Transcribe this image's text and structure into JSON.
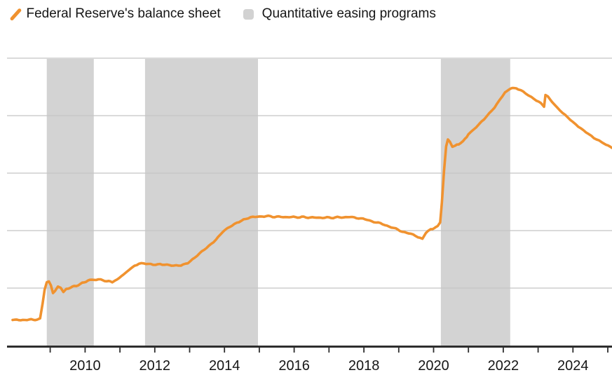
{
  "legend": {
    "series_label": "Federal Reserve's balance sheet",
    "band_label": "Quantitative easing programs"
  },
  "colors": {
    "line": "#F0922F",
    "band": "#D3D3D3",
    "legend_square": "#D2D2D2",
    "gridline": "#C4C4C4",
    "axis": "#2E2E2E",
    "text": "#161616",
    "background": "#FFFFFF"
  },
  "chart_data": {
    "type": "line",
    "title": "",
    "xlabel": "",
    "ylabel": "",
    "grid": "horizontal",
    "legend_position": "top-left",
    "x_axis": {
      "min": 2007.76,
      "max": 2025.12,
      "tick_years": [
        2009,
        2010,
        2011,
        2012,
        2013,
        2014,
        2015,
        2016,
        2017,
        2018,
        2019,
        2020,
        2021,
        2022,
        2023,
        2024,
        2025
      ],
      "label_years": [
        2010,
        2012,
        2014,
        2016,
        2018,
        2020,
        2022,
        2024
      ]
    },
    "y_axis": {
      "min": 0,
      "max": 10,
      "gridline_step": 2,
      "tick_labels_visible": false,
      "note": "no axis value labels shown; values estimated in trillions of US dollars from gridline spacing"
    },
    "bands": [
      {
        "start": 2008.9,
        "end": 2010.25
      },
      {
        "start": 2011.72,
        "end": 2014.96
      },
      {
        "start": 2020.21,
        "end": 2022.2
      }
    ],
    "series": [
      {
        "name": "Federal Reserve's balance sheet",
        "color": "#F0922F",
        "points": [
          [
            2007.92,
            0.89
          ],
          [
            2008.15,
            0.89
          ],
          [
            2008.4,
            0.9
          ],
          [
            2008.62,
            0.9
          ],
          [
            2008.71,
            0.94
          ],
          [
            2008.78,
            1.45
          ],
          [
            2008.84,
            1.95
          ],
          [
            2008.9,
            2.2
          ],
          [
            2008.96,
            2.22
          ],
          [
            2009.02,
            2.1
          ],
          [
            2009.08,
            1.83
          ],
          [
            2009.14,
            1.9
          ],
          [
            2009.22,
            2.05
          ],
          [
            2009.3,
            2.03
          ],
          [
            2009.38,
            1.87
          ],
          [
            2009.46,
            1.97
          ],
          [
            2009.58,
            2.02
          ],
          [
            2009.75,
            2.08
          ],
          [
            2009.92,
            2.17
          ],
          [
            2010.08,
            2.26
          ],
          [
            2010.25,
            2.3
          ],
          [
            2010.45,
            2.29
          ],
          [
            2010.62,
            2.24
          ],
          [
            2010.78,
            2.22
          ],
          [
            2010.92,
            2.3
          ],
          [
            2011.08,
            2.45
          ],
          [
            2011.25,
            2.62
          ],
          [
            2011.42,
            2.78
          ],
          [
            2011.55,
            2.85
          ],
          [
            2011.75,
            2.84
          ],
          [
            2011.95,
            2.82
          ],
          [
            2012.15,
            2.84
          ],
          [
            2012.35,
            2.8
          ],
          [
            2012.55,
            2.77
          ],
          [
            2012.75,
            2.8
          ],
          [
            2012.95,
            2.88
          ],
          [
            2013.15,
            3.05
          ],
          [
            2013.35,
            3.27
          ],
          [
            2013.55,
            3.47
          ],
          [
            2013.75,
            3.68
          ],
          [
            2013.95,
            3.95
          ],
          [
            2014.15,
            4.13
          ],
          [
            2014.35,
            4.28
          ],
          [
            2014.55,
            4.38
          ],
          [
            2014.75,
            4.45
          ],
          [
            2014.95,
            4.49
          ],
          [
            2015.2,
            4.5
          ],
          [
            2015.5,
            4.48
          ],
          [
            2015.8,
            4.47
          ],
          [
            2016.1,
            4.47
          ],
          [
            2016.4,
            4.46
          ],
          [
            2016.7,
            4.45
          ],
          [
            2017.0,
            4.45
          ],
          [
            2017.3,
            4.46
          ],
          [
            2017.6,
            4.47
          ],
          [
            2017.85,
            4.44
          ],
          [
            2018.1,
            4.37
          ],
          [
            2018.35,
            4.29
          ],
          [
            2018.6,
            4.2
          ],
          [
            2018.85,
            4.09
          ],
          [
            2019.1,
            3.97
          ],
          [
            2019.35,
            3.88
          ],
          [
            2019.55,
            3.78
          ],
          [
            2019.68,
            3.72
          ],
          [
            2019.78,
            3.92
          ],
          [
            2019.84,
            3.99
          ],
          [
            2019.92,
            4.04
          ],
          [
            2020.02,
            4.09
          ],
          [
            2020.12,
            4.16
          ],
          [
            2020.19,
            4.29
          ],
          [
            2020.24,
            5.0
          ],
          [
            2020.3,
            6.08
          ],
          [
            2020.36,
            6.93
          ],
          [
            2020.41,
            7.17
          ],
          [
            2020.47,
            7.1
          ],
          [
            2020.54,
            6.92
          ],
          [
            2020.62,
            6.95
          ],
          [
            2020.72,
            7.01
          ],
          [
            2020.85,
            7.12
          ],
          [
            2020.95,
            7.25
          ],
          [
            2021.0,
            7.36
          ],
          [
            2021.15,
            7.52
          ],
          [
            2021.3,
            7.7
          ],
          [
            2021.45,
            7.88
          ],
          [
            2021.6,
            8.08
          ],
          [
            2021.75,
            8.28
          ],
          [
            2021.9,
            8.55
          ],
          [
            2022.05,
            8.8
          ],
          [
            2022.15,
            8.9
          ],
          [
            2022.25,
            8.97
          ],
          [
            2022.37,
            8.95
          ],
          [
            2022.5,
            8.88
          ],
          [
            2022.65,
            8.76
          ],
          [
            2022.8,
            8.64
          ],
          [
            2022.95,
            8.53
          ],
          [
            2023.08,
            8.42
          ],
          [
            2023.17,
            8.32
          ],
          [
            2023.21,
            8.72
          ],
          [
            2023.28,
            8.66
          ],
          [
            2023.4,
            8.49
          ],
          [
            2023.55,
            8.28
          ],
          [
            2023.7,
            8.11
          ],
          [
            2023.85,
            7.95
          ],
          [
            2024.0,
            7.78
          ],
          [
            2024.15,
            7.63
          ],
          [
            2024.3,
            7.49
          ],
          [
            2024.45,
            7.36
          ],
          [
            2024.6,
            7.22
          ],
          [
            2024.75,
            7.12
          ],
          [
            2024.9,
            7.02
          ],
          [
            2025.0,
            6.96
          ],
          [
            2025.12,
            6.88
          ]
        ]
      }
    ]
  }
}
